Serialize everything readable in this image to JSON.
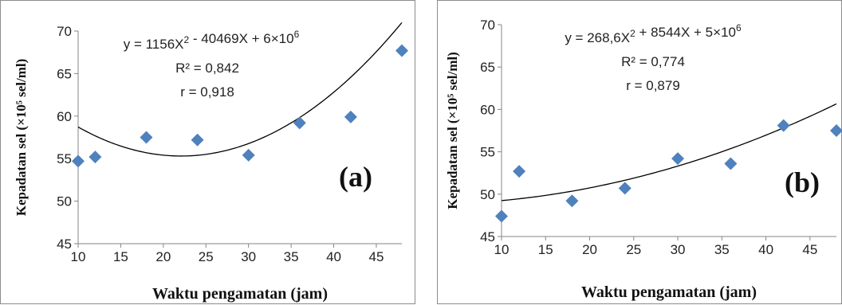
{
  "chart_data": [
    {
      "type": "scatter",
      "panel_label": "(a)",
      "xlabel": "Waktu pengamatan (jam)",
      "ylabel": "Kepadatan sel (×10⁵ sel/ml)",
      "xlim": [
        10,
        48
      ],
      "ylim": [
        45,
        70
      ],
      "xticks": [
        "10",
        "15",
        "20",
        "25",
        "30",
        "35",
        "40",
        "45"
      ],
      "yticks": [
        "45",
        "50",
        "55",
        "60",
        "65",
        "70"
      ],
      "x": [
        10,
        12,
        18,
        24,
        30,
        36,
        42,
        48
      ],
      "y": [
        54.7,
        55.2,
        57.5,
        57.2,
        55.4,
        59.2,
        59.9,
        67.7
      ],
      "trendline": {
        "type": "polynomial-2",
        "coefficients": [
          0.02336,
          -1.0318,
          66.7
        ]
      },
      "equation": "y = 1156X² - 40469X + 6×10⁶",
      "r_squared": "R² = 0,842",
      "r": "r = 0,918",
      "marker_color": "#4f81bd",
      "line_color": "#000000"
    },
    {
      "type": "scatter",
      "panel_label": "(b)",
      "xlabel": "Waktu pengamatan (jam)",
      "ylabel": "Kepadatan sel (×10⁵ sel/ml)",
      "xlim": [
        10,
        48
      ],
      "ylim": [
        45,
        70
      ],
      "xticks": [
        "10",
        "15",
        "20",
        "25",
        "30",
        "35",
        "40",
        "45"
      ],
      "yticks": [
        "45",
        "50",
        "55",
        "60",
        "65",
        "70"
      ],
      "x": [
        10,
        12,
        18,
        24,
        30,
        36,
        42,
        48
      ],
      "y": [
        47.4,
        52.7,
        49.2,
        50.7,
        54.2,
        53.6,
        58.1,
        57.5
      ],
      "trendline": {
        "type": "polynomial-2",
        "coefficients": [
          0.00538,
          -0.0117,
          48.82
        ]
      },
      "equation": "y = 268,6X² + 8544X + 5×10⁶",
      "r_squared": "R² = 0,774",
      "r": "r = 0,879",
      "marker_color": "#4f81bd",
      "line_color": "#000000"
    }
  ]
}
